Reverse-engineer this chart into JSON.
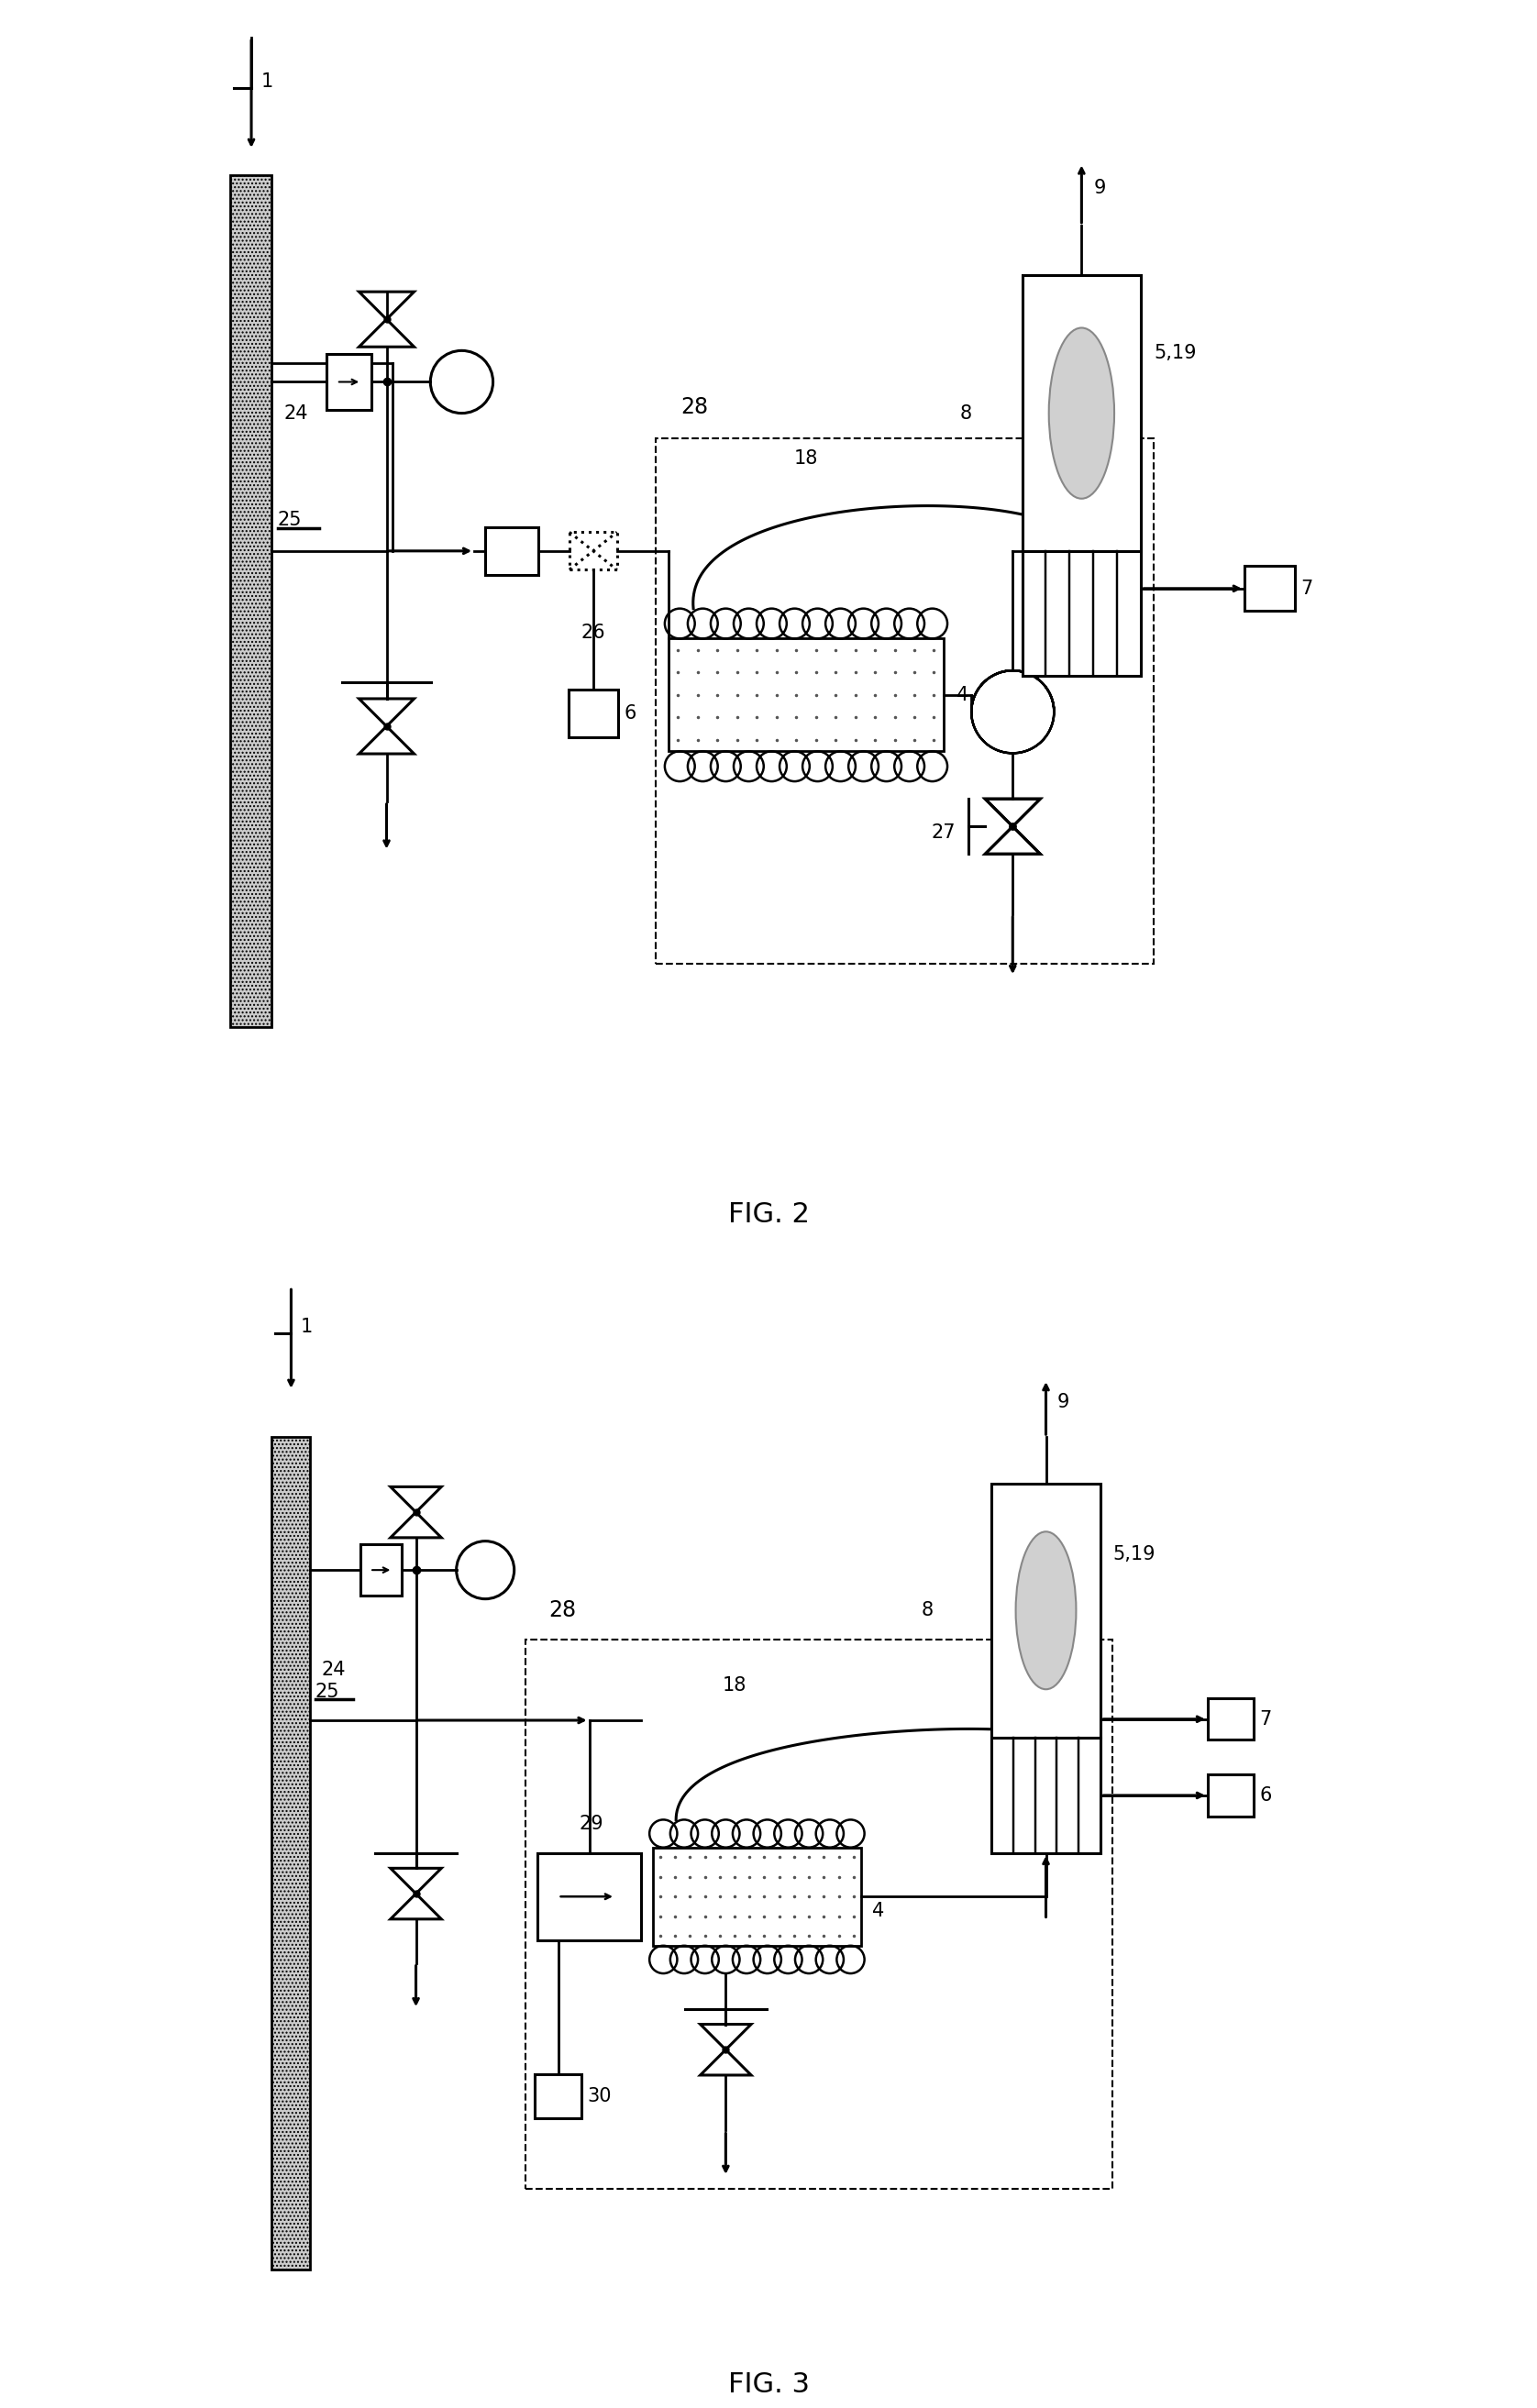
{
  "fig_width": 16.76,
  "fig_height": 26.26,
  "background": "#ffffff",
  "fig2_label": "FIG. 2",
  "fig3_label": "FIG. 3"
}
